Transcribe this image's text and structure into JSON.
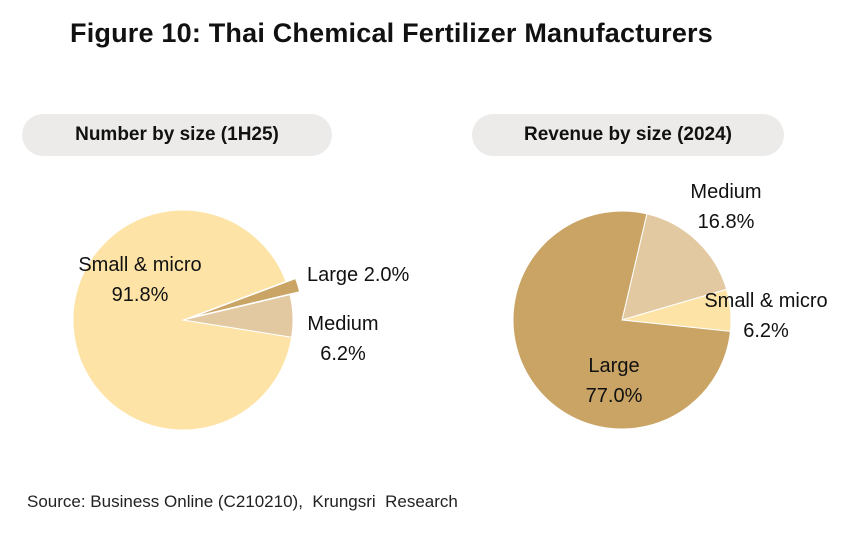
{
  "title": "Figure 10: Thai Chemical Fertilizer Manufacturers",
  "source": "Source: Business Online (C210210),  Krungsri  Research",
  "colors": {
    "small_micro": "#fde3a5",
    "medium": "#e2c9a1",
    "large": "#c9a465",
    "pill": "#ecebe9"
  },
  "chart_data": [
    {
      "type": "pie",
      "title": "Number by size (1H25)",
      "categories": [
        "Small & micro",
        "Large",
        "Medium"
      ],
      "values": [
        91.8,
        2.0,
        6.2
      ],
      "labels": [
        "91.8%",
        "2.0%",
        "6.2%"
      ],
      "exploded": [
        "Large"
      ]
    },
    {
      "type": "pie",
      "title": "Revenue by size (2024)",
      "categories": [
        "Medium",
        "Small & micro",
        "Large"
      ],
      "values": [
        16.8,
        6.2,
        77.0
      ],
      "labels": [
        "16.8%",
        "6.2%",
        "77.0%"
      ]
    }
  ]
}
